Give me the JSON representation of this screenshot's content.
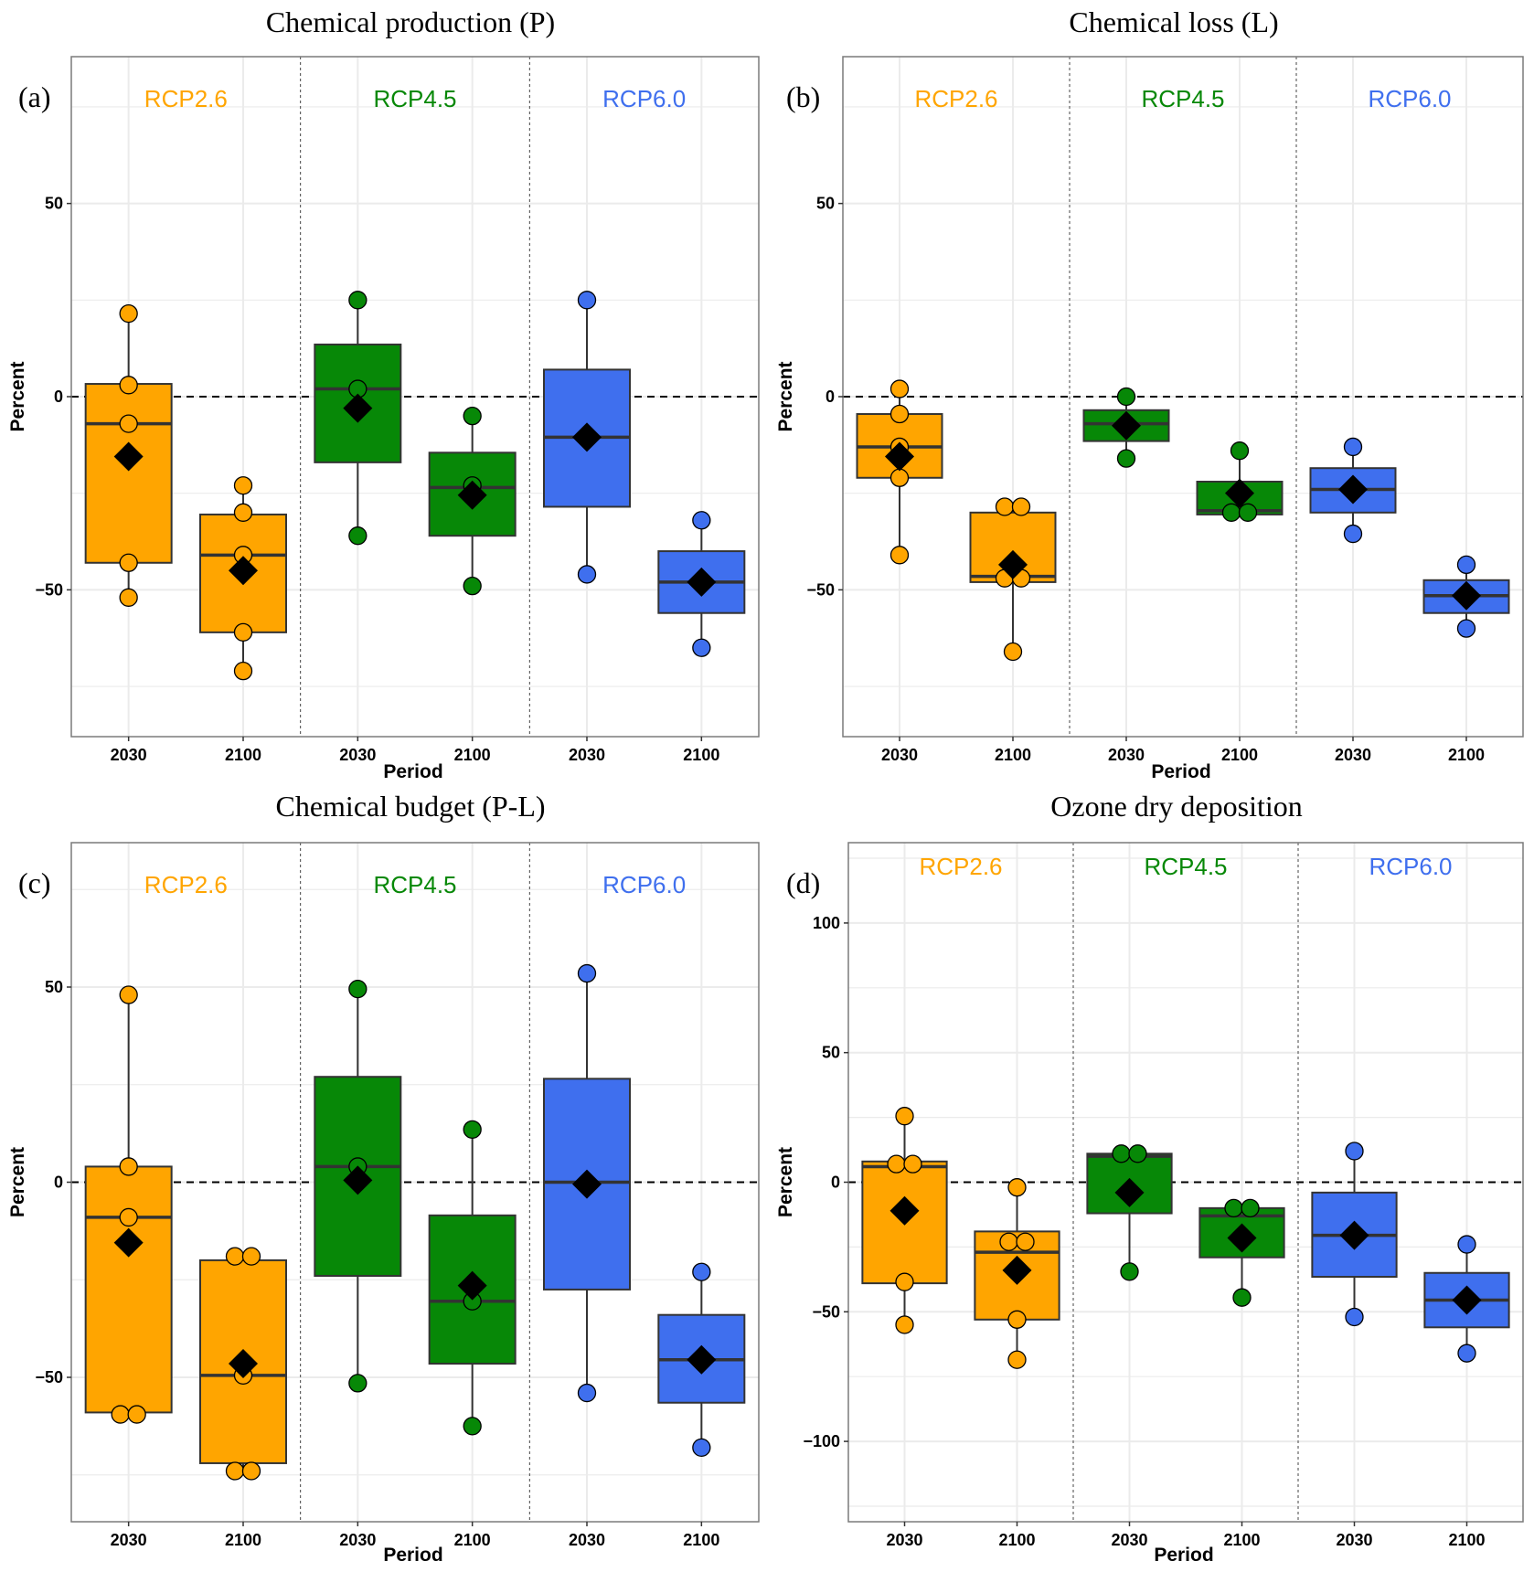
{
  "figure": {
    "colors": {
      "RCP2.6": "#FFA500",
      "RCP4.5": "#078807",
      "RCP6.0": "#3F6FEE",
      "box_outline": "#333333",
      "mean_marker": "#000000",
      "grid": "#EBEBEB"
    }
  },
  "chart_data": [
    {
      "type": "box",
      "panel_label": "(a)",
      "title": "Chemical production (P)",
      "xlabel": "Period",
      "ylabel": "Percent",
      "ylim": [
        -88,
        88
      ],
      "yticks": [
        -50,
        0,
        50
      ],
      "ytick_labels": [
        "−50",
        "0",
        "50"
      ],
      "grid": true,
      "reference_line": 0,
      "groups": [
        "RCP2.6",
        "RCP4.5",
        "RCP6.0"
      ],
      "categories": [
        "2030",
        "2100",
        "2030",
        "2100",
        "2030",
        "2100"
      ],
      "boxes": [
        {
          "group": "RCP2.6",
          "period": "2030",
          "whisker_low": -52,
          "q1": -43,
          "median": -7,
          "q3": 3.3,
          "whisker_high": 21.5,
          "mean": -15.5,
          "points": [
            21.5,
            3,
            -7,
            -43,
            -52
          ]
        },
        {
          "group": "RCP2.6",
          "period": "2100",
          "whisker_low": -71,
          "q1": -61,
          "median": -41,
          "q3": -30.5,
          "whisker_high": -23,
          "mean": -45,
          "points": [
            -23,
            -30,
            -41,
            -61,
            -71
          ]
        },
        {
          "group": "RCP4.5",
          "period": "2030",
          "whisker_low": -36,
          "q1": -17,
          "median": 2,
          "q3": 13.5,
          "whisker_high": 25,
          "mean": -3,
          "points": [
            25,
            2,
            -36
          ]
        },
        {
          "group": "RCP4.5",
          "period": "2100",
          "whisker_low": -49,
          "q1": -36,
          "median": -23.5,
          "q3": -14.5,
          "whisker_high": -5,
          "mean": -25.5,
          "points": [
            -5,
            -23,
            -49
          ]
        },
        {
          "group": "RCP6.0",
          "period": "2030",
          "whisker_low": -46,
          "q1": -28.5,
          "median": -10.5,
          "q3": 7,
          "whisker_high": 25,
          "mean": -10.5,
          "points": [
            25,
            -46
          ]
        },
        {
          "group": "RCP6.0",
          "period": "2100",
          "whisker_low": -65,
          "q1": -56,
          "median": -48,
          "q3": -40,
          "whisker_high": -32,
          "mean": -48,
          "points": [
            -32,
            -65
          ]
        }
      ]
    },
    {
      "type": "box",
      "panel_label": "(b)",
      "title": "Chemical loss (L)",
      "xlabel": "Period",
      "ylabel": "Percent",
      "ylim": [
        -88,
        88
      ],
      "yticks": [
        -50,
        0,
        50
      ],
      "ytick_labels": [
        "−50",
        "0",
        "50"
      ],
      "grid": true,
      "reference_line": 0,
      "groups": [
        "RCP2.6",
        "RCP4.5",
        "RCP6.0"
      ],
      "categories": [
        "2030",
        "2100",
        "2030",
        "2100",
        "2030",
        "2100"
      ],
      "boxes": [
        {
          "group": "RCP2.6",
          "period": "2030",
          "whisker_low": -41,
          "q1": -21,
          "median": -13,
          "q3": -4.5,
          "whisker_high": 2,
          "mean": -15.5,
          "points": [
            2,
            -4.5,
            -13,
            -21,
            -41
          ]
        },
        {
          "group": "RCP2.6",
          "period": "2100",
          "whisker_low": -66,
          "q1": -48,
          "median": -46.5,
          "q3": -30,
          "whisker_high": -28.5,
          "mean": -43.5,
          "points": [
            -28.5,
            -28.5,
            -47,
            -47,
            -66
          ]
        },
        {
          "group": "RCP4.5",
          "period": "2030",
          "whisker_low": -16,
          "q1": -11.5,
          "median": -7,
          "q3": -3.5,
          "whisker_high": 0,
          "mean": -7.5,
          "points": [
            0,
            -16
          ]
        },
        {
          "group": "RCP4.5",
          "period": "2100",
          "whisker_low": -30.5,
          "q1": -30.5,
          "median": -29.5,
          "q3": -22,
          "whisker_high": -14,
          "mean": -25,
          "points": [
            -14,
            -30,
            -30
          ]
        },
        {
          "group": "RCP6.0",
          "period": "2030",
          "whisker_low": -35.5,
          "q1": -30,
          "median": -24,
          "q3": -18.5,
          "whisker_high": -13,
          "mean": -24,
          "points": [
            -13,
            -35.5
          ]
        },
        {
          "group": "RCP6.0",
          "period": "2100",
          "whisker_low": -60,
          "q1": -56,
          "median": -51.5,
          "q3": -47.5,
          "whisker_high": -43.5,
          "mean": -51.5,
          "points": [
            -43.5,
            -60
          ]
        }
      ]
    },
    {
      "type": "box",
      "panel_label": "(c)",
      "title": "Chemical budget (P-L)",
      "xlabel": "Period",
      "ylabel": "Percent",
      "ylim": [
        -87,
        87
      ],
      "yticks": [
        -50,
        0,
        50
      ],
      "ytick_labels": [
        "−50",
        "0",
        "50"
      ],
      "grid": true,
      "reference_line": 0,
      "groups": [
        "RCP2.6",
        "RCP4.5",
        "RCP6.0"
      ],
      "categories": [
        "2030",
        "2100",
        "2030",
        "2100",
        "2030",
        "2100"
      ],
      "boxes": [
        {
          "group": "RCP2.6",
          "period": "2030",
          "whisker_low": -59.5,
          "q1": -59,
          "median": -9,
          "q3": 4,
          "whisker_high": 48,
          "mean": -15.5,
          "points": [
            48,
            4,
            -9,
            -59.5,
            -59.5
          ]
        },
        {
          "group": "RCP2.6",
          "period": "2100",
          "whisker_low": -74,
          "q1": -72,
          "median": -49.5,
          "q3": -20,
          "whisker_high": -19,
          "mean": -46.5,
          "points": [
            -19,
            -19,
            -49.5,
            -74,
            -74
          ]
        },
        {
          "group": "RCP4.5",
          "period": "2030",
          "whisker_low": -51.5,
          "q1": -24,
          "median": 4,
          "q3": 27,
          "whisker_high": 49.5,
          "mean": 0.5,
          "points": [
            49.5,
            4,
            -51.5
          ]
        },
        {
          "group": "RCP4.5",
          "period": "2100",
          "whisker_low": -62.5,
          "q1": -46.5,
          "median": -30.5,
          "q3": -8.5,
          "whisker_high": 13.5,
          "mean": -26.5,
          "points": [
            13.5,
            -30.5,
            -62.5
          ]
        },
        {
          "group": "RCP6.0",
          "period": "2030",
          "whisker_low": -54,
          "q1": -27.5,
          "median": 0,
          "q3": 26.5,
          "whisker_high": 53.5,
          "mean": -0.5,
          "points": [
            53.5,
            -54
          ]
        },
        {
          "group": "RCP6.0",
          "period": "2100",
          "whisker_low": -68,
          "q1": -56.5,
          "median": -45.5,
          "q3": -34,
          "whisker_high": -23,
          "mean": -45.5,
          "points": [
            -23,
            -68
          ]
        }
      ]
    },
    {
      "type": "box",
      "panel_label": "(d)",
      "title": "Ozone dry deposition",
      "xlabel": "Period",
      "ylabel": "Percent",
      "ylim": [
        -131,
        131
      ],
      "yticks": [
        -100,
        -50,
        0,
        50,
        100
      ],
      "ytick_labels": [
        "−100",
        "−50",
        "0",
        "50",
        "100"
      ],
      "grid": true,
      "reference_line": 0,
      "groups": [
        "RCP2.6",
        "RCP4.5",
        "RCP6.0"
      ],
      "categories": [
        "2030",
        "2100",
        "2030",
        "2100",
        "2030",
        "2100"
      ],
      "boxes": [
        {
          "group": "RCP2.6",
          "period": "2030",
          "whisker_low": -55,
          "q1": -39,
          "median": 6,
          "q3": 8,
          "whisker_high": 25.5,
          "mean": -11,
          "points": [
            25.5,
            7,
            7,
            -38.5,
            -55
          ]
        },
        {
          "group": "RCP2.6",
          "period": "2100",
          "whisker_low": -68.5,
          "q1": -53,
          "median": -27,
          "q3": -19,
          "whisker_high": -2,
          "mean": -34,
          "points": [
            -2,
            -23,
            -23,
            -53,
            -68.5
          ]
        },
        {
          "group": "RCP4.5",
          "period": "2030",
          "whisker_low": -34.5,
          "q1": -12,
          "median": 10,
          "q3": 11,
          "whisker_high": 11,
          "mean": -4,
          "points": [
            11,
            11,
            -34.5
          ]
        },
        {
          "group": "RCP4.5",
          "period": "2100",
          "whisker_low": -44.5,
          "q1": -29,
          "median": -13,
          "q3": -10,
          "whisker_high": -10,
          "mean": -21.5,
          "points": [
            -10,
            -10,
            -44.5
          ]
        },
        {
          "group": "RCP6.0",
          "period": "2030",
          "whisker_low": -52,
          "q1": -36.5,
          "median": -20.5,
          "q3": -4,
          "whisker_high": 12,
          "mean": -20.5,
          "points": [
            12,
            -52
          ]
        },
        {
          "group": "RCP6.0",
          "period": "2100",
          "whisker_low": -66,
          "q1": -56,
          "median": -45.5,
          "q3": -35,
          "whisker_high": -24,
          "mean": -45.5,
          "points": [
            -24,
            -66
          ]
        }
      ]
    }
  ]
}
